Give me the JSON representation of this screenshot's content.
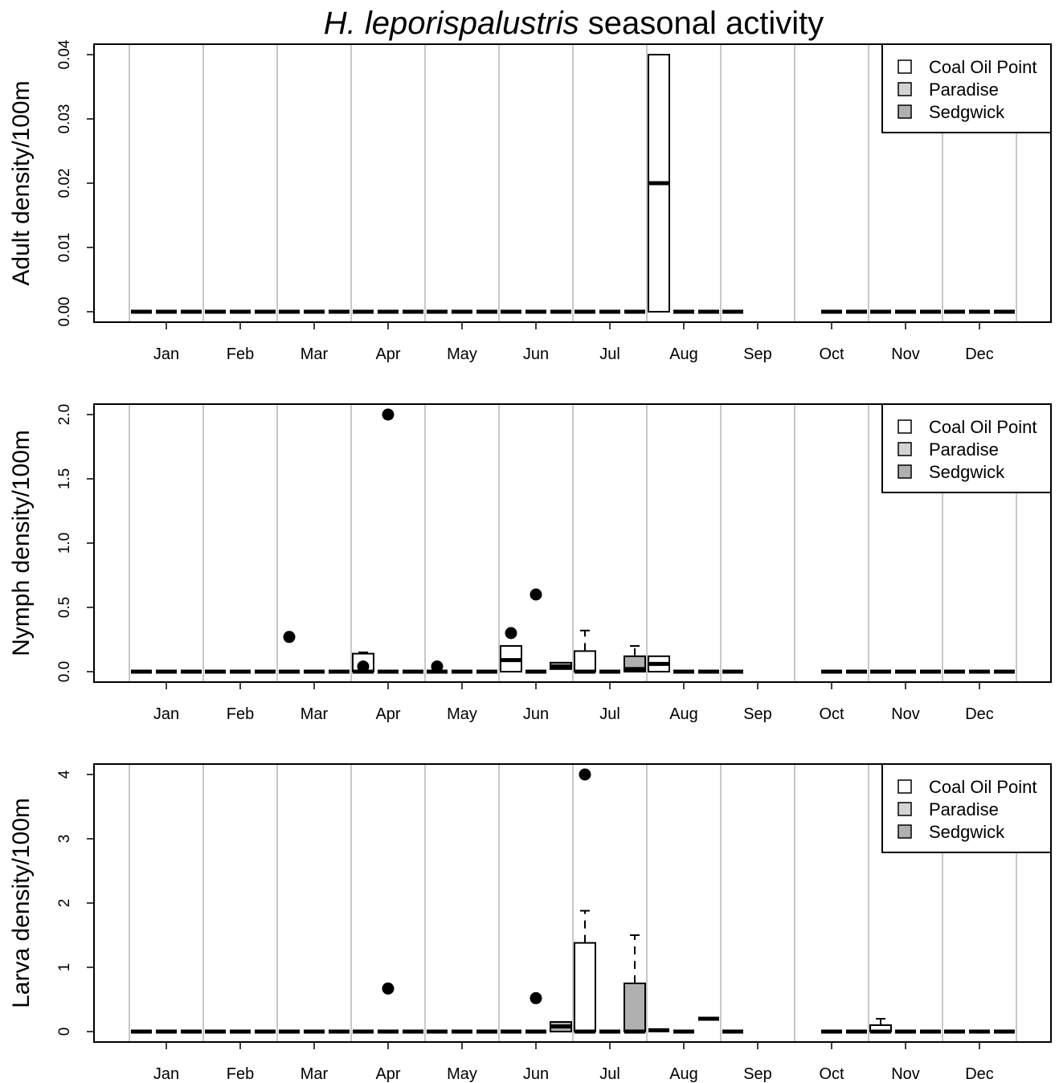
{
  "title": {
    "italic": "H. leporispalustris",
    "rest": " seasonal activity"
  },
  "colors": {
    "Coal Oil Point": "#ffffff",
    "Paradise": "#d3d3d3",
    "Sedgwick": "#b0b0b0",
    "gridline": "#c8c8c8"
  },
  "chart_data": [
    {
      "type": "box",
      "ylabel": "Adult density/100m",
      "ylim": [
        0,
        0.04
      ],
      "yticks": [
        "0.00",
        "0.01",
        "0.02",
        "0.03",
        "0.04"
      ],
      "yticks_values": [
        0,
        0.01,
        0.02,
        0.03,
        0.04
      ],
      "months": [
        "Jan",
        "Feb",
        "Mar",
        "Apr",
        "May",
        "Jun",
        "Jul",
        "Aug",
        "Sep",
        "Oct",
        "Nov",
        "Dec"
      ],
      "legend": [
        "Coal Oil Point",
        "Paradise",
        "Sedgwick"
      ],
      "legend_position": "top-right",
      "grid": "vertical lines between months",
      "boxes": [
        {
          "month": "Jan",
          "site": "Coal Oil Point",
          "med": 0
        },
        {
          "month": "Jan",
          "site": "Paradise",
          "med": 0
        },
        {
          "month": "Jan",
          "site": "Sedgwick",
          "med": 0
        },
        {
          "month": "Feb",
          "site": "Coal Oil Point",
          "med": 0
        },
        {
          "month": "Feb",
          "site": "Paradise",
          "med": 0
        },
        {
          "month": "Feb",
          "site": "Sedgwick",
          "med": 0
        },
        {
          "month": "Mar",
          "site": "Coal Oil Point",
          "med": 0
        },
        {
          "month": "Mar",
          "site": "Paradise",
          "med": 0
        },
        {
          "month": "Mar",
          "site": "Sedgwick",
          "med": 0
        },
        {
          "month": "Apr",
          "site": "Coal Oil Point",
          "med": 0
        },
        {
          "month": "Apr",
          "site": "Paradise",
          "med": 0
        },
        {
          "month": "Apr",
          "site": "Sedgwick",
          "med": 0
        },
        {
          "month": "May",
          "site": "Coal Oil Point",
          "med": 0
        },
        {
          "month": "May",
          "site": "Paradise",
          "med": 0
        },
        {
          "month": "May",
          "site": "Sedgwick",
          "med": 0
        },
        {
          "month": "Jun",
          "site": "Coal Oil Point",
          "med": 0
        },
        {
          "month": "Jun",
          "site": "Paradise",
          "med": 0
        },
        {
          "month": "Jun",
          "site": "Sedgwick",
          "med": 0
        },
        {
          "month": "Jul",
          "site": "Coal Oil Point",
          "med": 0
        },
        {
          "month": "Jul",
          "site": "Paradise",
          "med": 0
        },
        {
          "month": "Jul",
          "site": "Sedgwick",
          "med": 0
        },
        {
          "month": "Aug",
          "site": "Coal Oil Point",
          "q1": 0,
          "med": 0.02,
          "q3": 0.04
        },
        {
          "month": "Aug",
          "site": "Paradise",
          "med": 0
        },
        {
          "month": "Aug",
          "site": "Sedgwick",
          "med": 0
        },
        {
          "month": "Sep",
          "site": "Coal Oil Point",
          "med": 0
        },
        {
          "month": "Oct",
          "site": "Paradise",
          "med": 0
        },
        {
          "month": "Oct",
          "site": "Sedgwick",
          "med": 0
        },
        {
          "month": "Nov",
          "site": "Coal Oil Point",
          "med": 0
        },
        {
          "month": "Nov",
          "site": "Paradise",
          "med": 0
        },
        {
          "month": "Nov",
          "site": "Sedgwick",
          "med": 0
        },
        {
          "month": "Dec",
          "site": "Coal Oil Point",
          "med": 0
        },
        {
          "month": "Dec",
          "site": "Paradise",
          "med": 0
        },
        {
          "month": "Dec",
          "site": "Sedgwick",
          "med": 0
        }
      ],
      "outliers": []
    },
    {
      "type": "box",
      "ylabel": "Nymph density/100m",
      "ylim": [
        0,
        2.0
      ],
      "yticks": [
        "0.0",
        "0.5",
        "1.0",
        "1.5",
        "2.0"
      ],
      "yticks_values": [
        0,
        0.5,
        1.0,
        1.5,
        2.0
      ],
      "months": [
        "Jan",
        "Feb",
        "Mar",
        "Apr",
        "May",
        "Jun",
        "Jul",
        "Aug",
        "Sep",
        "Oct",
        "Nov",
        "Dec"
      ],
      "legend": [
        "Coal Oil Point",
        "Paradise",
        "Sedgwick"
      ],
      "legend_position": "top-right",
      "grid": "vertical lines between months",
      "boxes": [
        {
          "month": "Jan",
          "site": "Coal Oil Point",
          "med": 0
        },
        {
          "month": "Jan",
          "site": "Paradise",
          "med": 0
        },
        {
          "month": "Jan",
          "site": "Sedgwick",
          "med": 0
        },
        {
          "month": "Feb",
          "site": "Coal Oil Point",
          "med": 0
        },
        {
          "month": "Feb",
          "site": "Paradise",
          "med": 0
        },
        {
          "month": "Feb",
          "site": "Sedgwick",
          "med": 0
        },
        {
          "month": "Mar",
          "site": "Coal Oil Point",
          "med": 0
        },
        {
          "month": "Mar",
          "site": "Paradise",
          "med": 0
        },
        {
          "month": "Mar",
          "site": "Sedgwick",
          "med": 0
        },
        {
          "month": "Apr",
          "site": "Coal Oil Point",
          "q1": 0,
          "med": 0,
          "q3": 0.14,
          "whisker_hi": 0.15
        },
        {
          "month": "Apr",
          "site": "Paradise",
          "med": 0
        },
        {
          "month": "Apr",
          "site": "Sedgwick",
          "med": 0
        },
        {
          "month": "May",
          "site": "Coal Oil Point",
          "med": 0
        },
        {
          "month": "May",
          "site": "Paradise",
          "med": 0
        },
        {
          "month": "May",
          "site": "Sedgwick",
          "med": 0
        },
        {
          "month": "Jun",
          "site": "Coal Oil Point",
          "q1": 0,
          "med": 0.09,
          "q3": 0.2
        },
        {
          "month": "Jun",
          "site": "Paradise",
          "med": 0
        },
        {
          "month": "Jun",
          "site": "Sedgwick",
          "q1": 0.02,
          "med": 0.04,
          "q3": 0.07
        },
        {
          "month": "Jul",
          "site": "Coal Oil Point",
          "q1": 0,
          "med": 0,
          "q3": 0.16,
          "whisker_hi": 0.32
        },
        {
          "month": "Jul",
          "site": "Paradise",
          "med": 0
        },
        {
          "month": "Jul",
          "site": "Sedgwick",
          "q1": 0,
          "med": 0.02,
          "q3": 0.12,
          "whisker_hi": 0.2
        },
        {
          "month": "Aug",
          "site": "Coal Oil Point",
          "q1": 0,
          "med": 0.06,
          "q3": 0.12
        },
        {
          "month": "Aug",
          "site": "Paradise",
          "med": 0
        },
        {
          "month": "Aug",
          "site": "Sedgwick",
          "med": 0
        },
        {
          "month": "Sep",
          "site": "Coal Oil Point",
          "med": 0
        },
        {
          "month": "Oct",
          "site": "Paradise",
          "med": 0
        },
        {
          "month": "Oct",
          "site": "Sedgwick",
          "med": 0
        },
        {
          "month": "Nov",
          "site": "Coal Oil Point",
          "med": 0
        },
        {
          "month": "Nov",
          "site": "Paradise",
          "med": 0
        },
        {
          "month": "Nov",
          "site": "Sedgwick",
          "med": 0
        },
        {
          "month": "Dec",
          "site": "Coal Oil Point",
          "med": 0
        },
        {
          "month": "Dec",
          "site": "Paradise",
          "med": 0
        },
        {
          "month": "Dec",
          "site": "Sedgwick",
          "med": 0
        }
      ],
      "outliers": [
        {
          "month": "Mar",
          "site": "Coal Oil Point",
          "value": 0.27
        },
        {
          "month": "Apr",
          "site": "Coal Oil Point",
          "value": 0.04
        },
        {
          "month": "Apr",
          "site": "Paradise",
          "value": 2.0
        },
        {
          "month": "May",
          "site": "Coal Oil Point",
          "value": 0.04
        },
        {
          "month": "Jun",
          "site": "Coal Oil Point",
          "value": 0.3
        },
        {
          "month": "Jun",
          "site": "Paradise",
          "value": 0.6
        }
      ]
    },
    {
      "type": "box",
      "ylabel": "Larva density/100m",
      "ylim": [
        0,
        4
      ],
      "yticks": [
        "0",
        "1",
        "2",
        "3",
        "4"
      ],
      "yticks_values": [
        0,
        1,
        2,
        3,
        4
      ],
      "months": [
        "Jan",
        "Feb",
        "Mar",
        "Apr",
        "May",
        "Jun",
        "Jul",
        "Aug",
        "Sep",
        "Oct",
        "Nov",
        "Dec"
      ],
      "legend": [
        "Coal Oil Point",
        "Paradise",
        "Sedgwick"
      ],
      "legend_position": "top-right",
      "grid": "vertical lines between months",
      "boxes": [
        {
          "month": "Jan",
          "site": "Coal Oil Point",
          "med": 0
        },
        {
          "month": "Jan",
          "site": "Paradise",
          "med": 0
        },
        {
          "month": "Jan",
          "site": "Sedgwick",
          "med": 0
        },
        {
          "month": "Feb",
          "site": "Coal Oil Point",
          "med": 0
        },
        {
          "month": "Feb",
          "site": "Paradise",
          "med": 0
        },
        {
          "month": "Feb",
          "site": "Sedgwick",
          "med": 0
        },
        {
          "month": "Mar",
          "site": "Coal Oil Point",
          "med": 0
        },
        {
          "month": "Mar",
          "site": "Paradise",
          "med": 0
        },
        {
          "month": "Mar",
          "site": "Sedgwick",
          "med": 0
        },
        {
          "month": "Apr",
          "site": "Coal Oil Point",
          "med": 0
        },
        {
          "month": "Apr",
          "site": "Paradise",
          "med": 0
        },
        {
          "month": "Apr",
          "site": "Sedgwick",
          "med": 0
        },
        {
          "month": "May",
          "site": "Coal Oil Point",
          "med": 0
        },
        {
          "month": "May",
          "site": "Paradise",
          "med": 0
        },
        {
          "month": "May",
          "site": "Sedgwick",
          "med": 0
        },
        {
          "month": "Jun",
          "site": "Coal Oil Point",
          "med": 0
        },
        {
          "month": "Jun",
          "site": "Paradise",
          "med": 0
        },
        {
          "month": "Jun",
          "site": "Sedgwick",
          "q1": 0,
          "med": 0.08,
          "q3": 0.15
        },
        {
          "month": "Jul",
          "site": "Coal Oil Point",
          "q1": 0,
          "med": 0,
          "q3": 1.38,
          "whisker_hi": 1.88
        },
        {
          "month": "Jul",
          "site": "Paradise",
          "med": 0
        },
        {
          "month": "Jul",
          "site": "Sedgwick",
          "q1": 0,
          "med": 0,
          "q3": 0.75,
          "whisker_hi": 1.5
        },
        {
          "month": "Aug",
          "site": "Coal Oil Point",
          "med": 0.02
        },
        {
          "month": "Aug",
          "site": "Paradise",
          "med": 0
        },
        {
          "month": "Aug",
          "site": "Sedgwick",
          "med": 0.2
        },
        {
          "month": "Sep",
          "site": "Coal Oil Point",
          "med": 0
        },
        {
          "month": "Oct",
          "site": "Paradise",
          "med": 0
        },
        {
          "month": "Oct",
          "site": "Sedgwick",
          "med": 0
        },
        {
          "month": "Nov",
          "site": "Coal Oil Point",
          "q1": 0,
          "med": 0,
          "q3": 0.1,
          "whisker_hi": 0.2
        },
        {
          "month": "Nov",
          "site": "Paradise",
          "med": 0
        },
        {
          "month": "Nov",
          "site": "Sedgwick",
          "med": 0
        },
        {
          "month": "Dec",
          "site": "Coal Oil Point",
          "med": 0
        },
        {
          "month": "Dec",
          "site": "Paradise",
          "med": 0
        },
        {
          "month": "Dec",
          "site": "Sedgwick",
          "med": 0
        }
      ],
      "outliers": [
        {
          "month": "Apr",
          "site": "Paradise",
          "value": 0.67
        },
        {
          "month": "Jun",
          "site": "Paradise",
          "value": 0.52
        },
        {
          "month": "Jul",
          "site": "Coal Oil Point",
          "value": 4.0
        }
      ]
    }
  ]
}
